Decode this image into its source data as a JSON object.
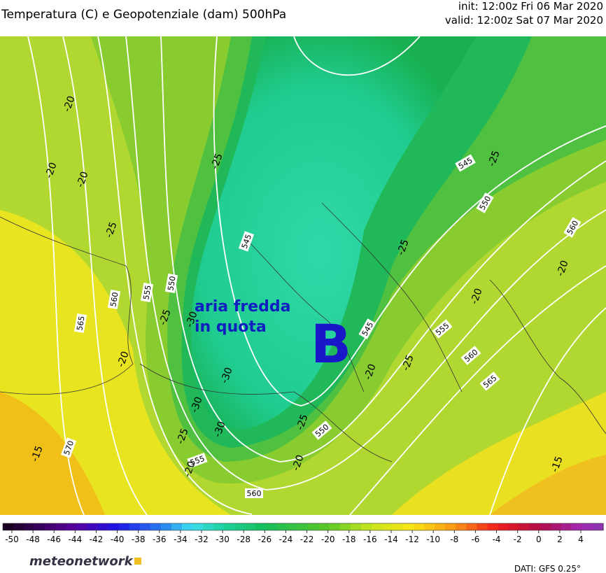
{
  "header": {
    "title": "Temperatura (C) e Geopotenziale (dam) 500hPa",
    "init": "init: 12:00z Fri 06 Mar 2020",
    "valid": "valid: 12:00z Sat 07 Mar 2020"
  },
  "map": {
    "annotation": [
      "aria fredda",
      "in quota"
    ],
    "low_label": "B",
    "height_contours": [
      545,
      550,
      560,
      545,
      555,
      550,
      560,
      565,
      545,
      555,
      560,
      565,
      570,
      550,
      555,
      560
    ],
    "temperature_contours": [
      -20,
      -20,
      -20,
      -25,
      -25,
      -25,
      -25,
      -20,
      -20,
      -25,
      -30,
      -20,
      -30,
      -30,
      -30,
      -25,
      -25,
      -20,
      -20,
      -15,
      -15,
      -20,
      -25
    ]
  },
  "colorbar": {
    "ticks": [
      -50,
      -48,
      -46,
      -44,
      -42,
      -40,
      -38,
      -36,
      -34,
      -32,
      -30,
      -28,
      -26,
      -24,
      -22,
      -20,
      -18,
      -16,
      -14,
      -12,
      -10,
      -8,
      -6,
      -4,
      -2,
      0,
      2,
      4
    ]
  },
  "footer": {
    "logo": "meteonetwork",
    "source": "DATI:  GFS  0.25°"
  }
}
